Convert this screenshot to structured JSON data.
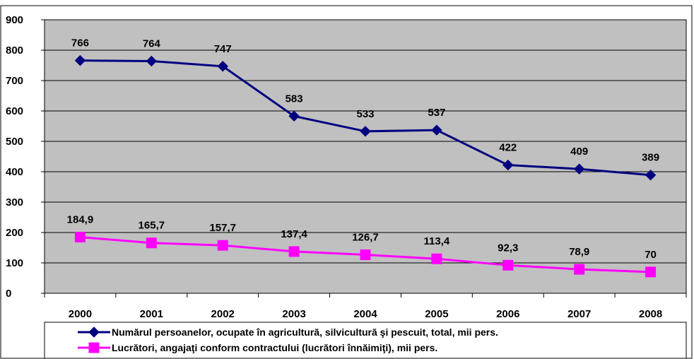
{
  "chart_data": {
    "type": "line",
    "categories": [
      "2000",
      "2001",
      "2002",
      "2003",
      "2004",
      "2005",
      "2006",
      "2007",
      "2008"
    ],
    "ylim": [
      0,
      900
    ],
    "yticks": [
      0,
      100,
      200,
      300,
      400,
      500,
      600,
      700,
      800,
      900
    ],
    "grid": true,
    "legend_position": "bottom",
    "series": [
      {
        "name": "Numărul persoanelor, ocupate în agricultură, silvicultură şi pescuit, total, mii pers.",
        "values": [
          766,
          764,
          747,
          583,
          533,
          537,
          422,
          409,
          389
        ],
        "labels": [
          "766",
          "764",
          "747",
          "583",
          "533",
          "537",
          "422",
          "409",
          "389"
        ],
        "color": "#000080",
        "marker": "diamond"
      },
      {
        "name": "Lucrători, angajaţi conform contractului (lucrători înnăimiţi), mii pers.",
        "values": [
          184.9,
          165.7,
          157.7,
          137.4,
          126.7,
          113.4,
          92.3,
          78.9,
          70
        ],
        "labels": [
          "184,9",
          "165,7",
          "157,7",
          "137,4",
          "126,7",
          "113,4",
          "92,3",
          "78,9",
          "70"
        ],
        "color": "#FF00FF",
        "marker": "square"
      }
    ],
    "colors": {
      "plot_background": "#C0C0C0",
      "gridline": "#000000"
    }
  }
}
